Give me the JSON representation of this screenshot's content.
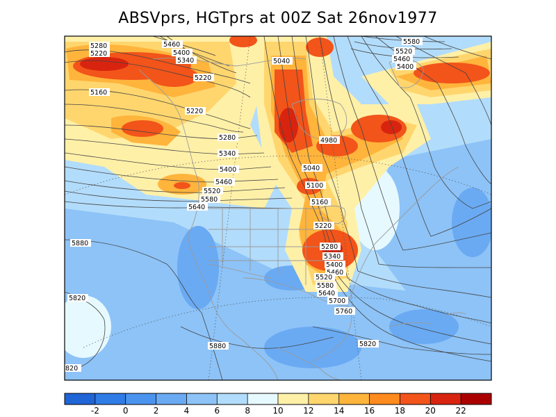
{
  "title": "ABSVprs, HGTprs at 00Z Sat 26nov1977",
  "fields": {
    "shaded": "ABSVprs",
    "contoured": "HGTprs"
  },
  "colorbar": {
    "tick_labels": [
      "-2",
      "0",
      "2",
      "4",
      "6",
      "8",
      "10",
      "12",
      "14",
      "16",
      "18",
      "20",
      "22"
    ],
    "colors": [
      "#1f65d6",
      "#2f7ce6",
      "#4a94ef",
      "#6aaaf3",
      "#8dc3f7",
      "#b2dcfb",
      "#e6f9ff",
      "#fff0a8",
      "#ffd66e",
      "#ffb43c",
      "#ff8a1e",
      "#f2541a",
      "#d8240f",
      "#ab0000"
    ]
  },
  "contour_labels": [
    "5280",
    "5220",
    "5460",
    "5400",
    "5340",
    "5220",
    "5160",
    "5220",
    "5280",
    "5340",
    "5400",
    "5460",
    "5520",
    "5580",
    "5640",
    "5040",
    "4980",
    "5040",
    "5100",
    "5160",
    "5220",
    "5280",
    "5340",
    "5400",
    "5460",
    "5520",
    "5580",
    "5640",
    "5700",
    "5760",
    "5580",
    "5520",
    "5460",
    "5400",
    "5880",
    "5820",
    "5880",
    "5820",
    "820"
  ],
  "map_colors": {
    "coast": "#9a9a9a",
    "contour": "#444444",
    "frame": "#000000"
  }
}
